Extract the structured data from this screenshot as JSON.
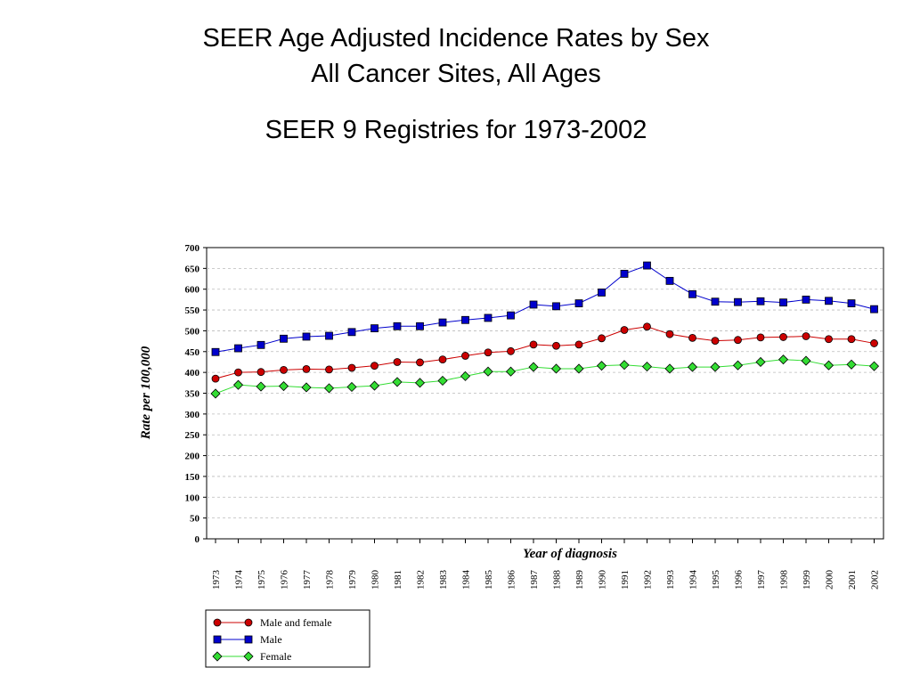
{
  "header": {
    "title_line1": "SEER Age Adjusted Incidence Rates by Sex",
    "title_line2": "All Cancer Sites, All Ages",
    "subtitle": "SEER 9 Registries for 1973-2002"
  },
  "chart_data": {
    "type": "line",
    "title": "SEER Age Adjusted Incidence Rates by Sex",
    "xlabel": "Year of diagnosis",
    "ylabel": "Rate per 100,000",
    "ylim": [
      0,
      700
    ],
    "yticks": [
      0,
      50,
      100,
      150,
      200,
      250,
      300,
      350,
      400,
      450,
      500,
      550,
      600,
      650,
      700
    ],
    "grid": "horizontal dashed",
    "legend_position": "bottom-left",
    "x": [
      "1973",
      "1974",
      "1975",
      "1976",
      "1977",
      "1978",
      "1979",
      "1980",
      "1981",
      "1982",
      "1983",
      "1984",
      "1985",
      "1986",
      "1987",
      "1988",
      "1989",
      "1990",
      "1991",
      "1992",
      "1993",
      "1994",
      "1995",
      "1996",
      "1997",
      "1998",
      "1999",
      "2000",
      "2001",
      "2002"
    ],
    "series": [
      {
        "name": "Male and female",
        "color": "#cc0000",
        "line_color": "#cc0000",
        "marker": "circle",
        "values": [
          385,
          400,
          401,
          406,
          408,
          407,
          411,
          416,
          425,
          424,
          431,
          440,
          448,
          451,
          467,
          464,
          467,
          482,
          502,
          510,
          492,
          483,
          476,
          478,
          484,
          485,
          487,
          480,
          480,
          470
        ]
      },
      {
        "name": "Male",
        "color": "#0000cc",
        "line_color": "#0000cc",
        "marker": "square",
        "values": [
          449,
          458,
          466,
          481,
          486,
          488,
          497,
          506,
          511,
          511,
          520,
          526,
          531,
          537,
          563,
          559,
          566,
          592,
          637,
          657,
          620,
          588,
          570,
          569,
          571,
          568,
          575,
          572,
          566,
          552
        ]
      },
      {
        "name": "Female",
        "color": "#33dd33",
        "line_color": "#33dd33",
        "marker": "diamond",
        "values": [
          349,
          370,
          366,
          367,
          364,
          362,
          365,
          368,
          377,
          375,
          380,
          391,
          402,
          402,
          413,
          409,
          409,
          416,
          418,
          414,
          409,
          413,
          413,
          417,
          425,
          431,
          428,
          417,
          419,
          415
        ]
      }
    ]
  }
}
